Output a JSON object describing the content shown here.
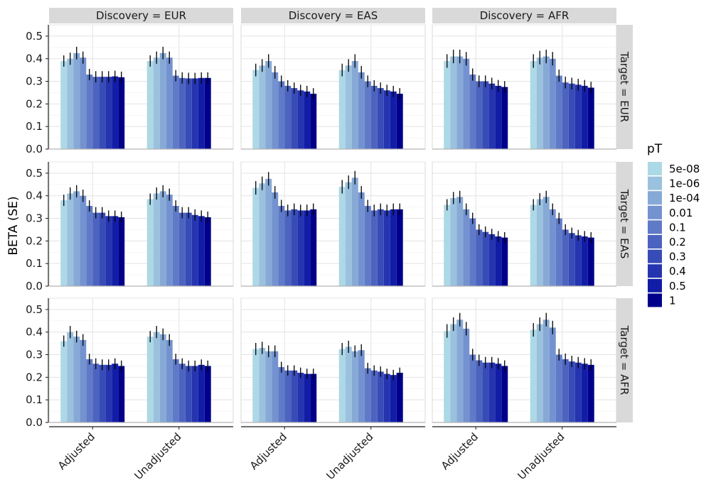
{
  "chart_data": {
    "type": "bar",
    "ylabel": "BETA (SE)",
    "xlabel": "",
    "ylim": [
      0,
      0.55
    ],
    "yticks": [
      "0.0",
      "0.1",
      "0.2",
      "0.3",
      "0.4",
      "0.5"
    ],
    "categories": [
      "Adjusted",
      "Unadjusted"
    ],
    "legend": {
      "title": "pT",
      "position": "right",
      "labels": [
        "5e-08",
        "1e-06",
        "1e-04",
        "0.01",
        "0.1",
        "0.2",
        "0.3",
        "0.4",
        "0.5",
        "1"
      ],
      "colors": [
        "#ADD8E6",
        "#9AC1DE",
        "#86A9D6",
        "#7392CF",
        "#5F7AC7",
        "#4C63BF",
        "#384CB7",
        "#2534AF",
        "#111DA7",
        "#00008B"
      ]
    },
    "col_strips": [
      "Discovery = EUR",
      "Discovery = EAS",
      "Discovery = AFR"
    ],
    "row_strips": [
      "Target = EUR",
      "Target = EAS",
      "Target = AFR"
    ],
    "panels": [
      {
        "row": 0,
        "col": 0,
        "values": [
          [
            0.39,
            0.4,
            0.425,
            0.405,
            0.33,
            0.32,
            0.32,
            0.32,
            0.322,
            0.318
          ],
          [
            0.39,
            0.405,
            0.425,
            0.405,
            0.325,
            0.315,
            0.313,
            0.313,
            0.315,
            0.315
          ]
        ],
        "se": [
          [
            0.025,
            0.027,
            0.028,
            0.027,
            0.025,
            0.025,
            0.025,
            0.025,
            0.025,
            0.025
          ],
          [
            0.025,
            0.027,
            0.028,
            0.027,
            0.025,
            0.025,
            0.025,
            0.025,
            0.025,
            0.025
          ]
        ]
      },
      {
        "row": 0,
        "col": 1,
        "values": [
          [
            0.35,
            0.37,
            0.39,
            0.34,
            0.3,
            0.28,
            0.27,
            0.26,
            0.255,
            0.245
          ],
          [
            0.35,
            0.37,
            0.39,
            0.34,
            0.3,
            0.28,
            0.27,
            0.26,
            0.255,
            0.245
          ]
        ],
        "se": [
          [
            0.028,
            0.028,
            0.03,
            0.028,
            0.026,
            0.025,
            0.025,
            0.025,
            0.025,
            0.025
          ],
          [
            0.028,
            0.028,
            0.03,
            0.028,
            0.026,
            0.025,
            0.025,
            0.025,
            0.025,
            0.025
          ]
        ]
      },
      {
        "row": 0,
        "col": 2,
        "values": [
          [
            0.39,
            0.41,
            0.41,
            0.4,
            0.33,
            0.3,
            0.3,
            0.29,
            0.28,
            0.275
          ],
          [
            0.39,
            0.405,
            0.41,
            0.4,
            0.325,
            0.295,
            0.29,
            0.285,
            0.28,
            0.272
          ]
        ],
        "se": [
          [
            0.03,
            0.03,
            0.03,
            0.03,
            0.027,
            0.026,
            0.026,
            0.026,
            0.026,
            0.026
          ],
          [
            0.03,
            0.03,
            0.03,
            0.03,
            0.027,
            0.026,
            0.026,
            0.026,
            0.026,
            0.026
          ]
        ]
      },
      {
        "row": 1,
        "col": 0,
        "values": [
          [
            0.38,
            0.41,
            0.42,
            0.4,
            0.355,
            0.325,
            0.325,
            0.31,
            0.31,
            0.305
          ],
          [
            0.385,
            0.41,
            0.42,
            0.405,
            0.355,
            0.325,
            0.325,
            0.315,
            0.31,
            0.305
          ]
        ],
        "se": [
          [
            0.025,
            0.027,
            0.027,
            0.027,
            0.025,
            0.025,
            0.025,
            0.025,
            0.025,
            0.025
          ],
          [
            0.025,
            0.027,
            0.027,
            0.027,
            0.025,
            0.025,
            0.025,
            0.025,
            0.025,
            0.025
          ]
        ]
      },
      {
        "row": 1,
        "col": 1,
        "values": [
          [
            0.435,
            0.455,
            0.475,
            0.415,
            0.355,
            0.335,
            0.34,
            0.335,
            0.335,
            0.34
          ],
          [
            0.44,
            0.46,
            0.48,
            0.415,
            0.355,
            0.335,
            0.34,
            0.335,
            0.34,
            0.34
          ]
        ],
        "se": [
          [
            0.03,
            0.03,
            0.03,
            0.028,
            0.027,
            0.026,
            0.026,
            0.026,
            0.026,
            0.026
          ],
          [
            0.03,
            0.03,
            0.03,
            0.028,
            0.027,
            0.026,
            0.026,
            0.026,
            0.026,
            0.026
          ]
        ]
      },
      {
        "row": 1,
        "col": 2,
        "values": [
          [
            0.36,
            0.39,
            0.395,
            0.34,
            0.3,
            0.25,
            0.24,
            0.23,
            0.22,
            0.215
          ],
          [
            0.36,
            0.385,
            0.395,
            0.34,
            0.3,
            0.25,
            0.235,
            0.225,
            0.22,
            0.215
          ]
        ],
        "se": [
          [
            0.025,
            0.027,
            0.027,
            0.026,
            0.025,
            0.024,
            0.024,
            0.024,
            0.024,
            0.024
          ],
          [
            0.025,
            0.027,
            0.027,
            0.026,
            0.025,
            0.024,
            0.024,
            0.024,
            0.024,
            0.024
          ]
        ]
      },
      {
        "row": 2,
        "col": 0,
        "values": [
          [
            0.36,
            0.4,
            0.38,
            0.365,
            0.28,
            0.26,
            0.255,
            0.255,
            0.26,
            0.25
          ],
          [
            0.38,
            0.4,
            0.39,
            0.365,
            0.28,
            0.26,
            0.25,
            0.25,
            0.255,
            0.25
          ]
        ],
        "se": [
          [
            0.025,
            0.027,
            0.026,
            0.026,
            0.024,
            0.024,
            0.024,
            0.024,
            0.024,
            0.024
          ],
          [
            0.025,
            0.027,
            0.026,
            0.026,
            0.024,
            0.024,
            0.024,
            0.024,
            0.024,
            0.024
          ]
        ]
      },
      {
        "row": 2,
        "col": 1,
        "values": [
          [
            0.325,
            0.33,
            0.315,
            0.315,
            0.245,
            0.23,
            0.23,
            0.22,
            0.215,
            0.215
          ],
          [
            0.325,
            0.335,
            0.315,
            0.32,
            0.24,
            0.23,
            0.225,
            0.215,
            0.21,
            0.22
          ]
        ],
        "se": [
          [
            0.027,
            0.027,
            0.026,
            0.026,
            0.024,
            0.023,
            0.023,
            0.023,
            0.023,
            0.023
          ],
          [
            0.027,
            0.027,
            0.026,
            0.026,
            0.024,
            0.023,
            0.023,
            0.023,
            0.023,
            0.023
          ]
        ]
      },
      {
        "row": 2,
        "col": 2,
        "values": [
          [
            0.405,
            0.435,
            0.455,
            0.415,
            0.3,
            0.275,
            0.265,
            0.265,
            0.26,
            0.25
          ],
          [
            0.41,
            0.435,
            0.455,
            0.42,
            0.3,
            0.28,
            0.27,
            0.265,
            0.26,
            0.255
          ]
        ],
        "se": [
          [
            0.03,
            0.03,
            0.03,
            0.03,
            0.026,
            0.025,
            0.025,
            0.025,
            0.025,
            0.025
          ],
          [
            0.03,
            0.03,
            0.03,
            0.03,
            0.026,
            0.025,
            0.025,
            0.025,
            0.025,
            0.025
          ]
        ]
      }
    ]
  }
}
